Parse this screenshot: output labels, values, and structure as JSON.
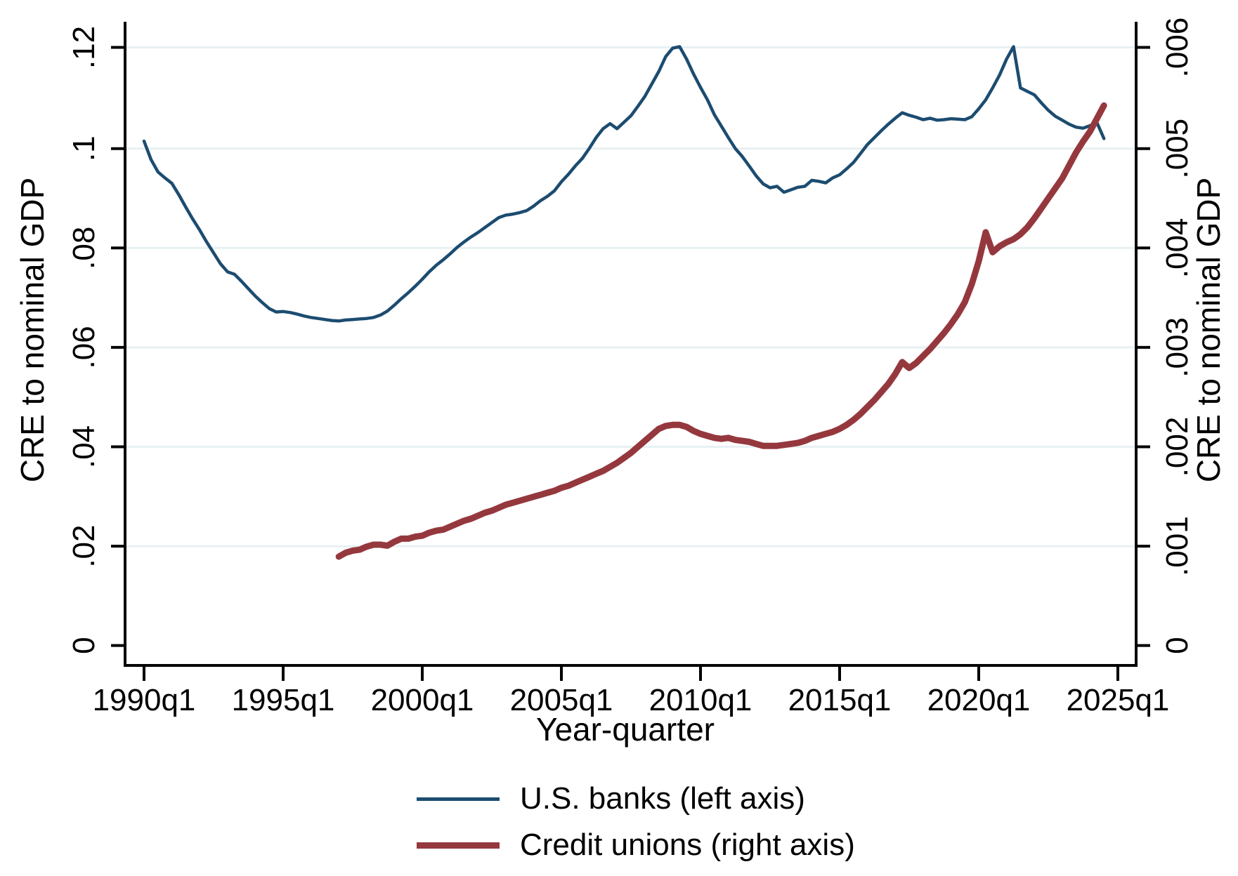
{
  "axes": {
    "left": {
      "title": "CRE to nominal GDP",
      "ticks": [
        ".12",
        ".1",
        ".08",
        ".06",
        ".04",
        ".02",
        "0"
      ]
    },
    "right": {
      "title": "CRE to nominal GDP",
      "ticks": [
        ".006",
        ".005",
        ".004",
        ".003",
        ".002",
        ".001",
        "0"
      ]
    },
    "x": {
      "title": "Year-quarter",
      "ticks": [
        "1990q1",
        "1995q1",
        "2000q1",
        "2005q1",
        "2010q1",
        "2015q1",
        "2020q1",
        "2025q1"
      ]
    }
  },
  "legend": {
    "items": [
      {
        "label": "U.S. banks (left axis)",
        "color": "#1c4c70"
      },
      {
        "label": "Credit unions (right axis)",
        "color": "#95383e"
      }
    ]
  },
  "colors": {
    "us_banks": "#1c4c70",
    "credit_unions": "#95383e",
    "gridline": "#e8f0f2",
    "axis": "#000000",
    "background": "#ffffff"
  },
  "chart_data": {
    "type": "line",
    "xlabel": "Year-quarter",
    "left_ylabel": "CRE to nominal GDP",
    "right_ylabel": "CRE to nominal GDP",
    "xlim": [
      1989.75,
      2025.5
    ],
    "left_ylim": [
      0,
      0.126
    ],
    "right_ylim": [
      0,
      0.0063
    ],
    "left_yticks": [
      0,
      0.02,
      0.04,
      0.06,
      0.08,
      0.1,
      0.12
    ],
    "right_yticks": [
      0,
      0.001,
      0.002,
      0.003,
      0.004,
      0.005,
      0.006
    ],
    "grid": true,
    "legend_position": "bottom",
    "series": [
      {
        "name": "U.S. banks (left axis)",
        "axis": "left",
        "color": "#1c4c70",
        "x_start": 1990.0,
        "x_step": 0.25,
        "values": [
          0.1015,
          0.0978,
          0.0953,
          0.0941,
          0.093,
          0.0907,
          0.0882,
          0.0858,
          0.0836,
          0.0812,
          0.079,
          0.0768,
          0.0752,
          0.0747,
          0.0733,
          0.0718,
          0.0703,
          0.069,
          0.0678,
          0.0671,
          0.0672,
          0.067,
          0.0667,
          0.0663,
          0.066,
          0.0658,
          0.0656,
          0.0654,
          0.0653,
          0.0655,
          0.0656,
          0.0657,
          0.0658,
          0.066,
          0.0665,
          0.0673,
          0.0685,
          0.0698,
          0.071,
          0.0723,
          0.0737,
          0.0752,
          0.0765,
          0.0776,
          0.0788,
          0.0801,
          0.0812,
          0.0822,
          0.0831,
          0.0841,
          0.0851,
          0.0861,
          0.0866,
          0.0868,
          0.0871,
          0.0875,
          0.0884,
          0.0895,
          0.0904,
          0.0915,
          0.0933,
          0.0948,
          0.0965,
          0.098,
          0.1,
          0.1022,
          0.104,
          0.105,
          0.104,
          0.1053,
          0.1066,
          0.1085,
          0.1105,
          0.113,
          0.1155,
          0.1185,
          0.1202,
          0.1205,
          0.118,
          0.115,
          0.1123,
          0.1098,
          0.1068,
          0.1045,
          0.1022,
          0.1,
          0.0984,
          0.0965,
          0.0945,
          0.0929,
          0.0921,
          0.0924,
          0.0912,
          0.0917,
          0.0922,
          0.0924,
          0.0936,
          0.0934,
          0.0931,
          0.0941,
          0.0947,
          0.0959,
          0.0972,
          0.099,
          0.1008,
          0.1022,
          0.1036,
          0.1049,
          0.1061,
          0.1072,
          0.1067,
          0.1063,
          0.1058,
          0.1061,
          0.1057,
          0.1058,
          0.106,
          0.1059,
          0.1058,
          0.1064,
          0.108,
          0.1098,
          0.1122,
          0.1148,
          0.118,
          0.1205,
          0.1122,
          0.1115,
          0.1108,
          0.1092,
          0.1077,
          0.1065,
          0.1057,
          0.1049,
          0.1043,
          0.1041,
          0.1046,
          0.1052,
          0.102
        ]
      },
      {
        "name": "Credit unions (right axis)",
        "axis": "right",
        "color": "#95383e",
        "x_start": 1997.0,
        "x_step": 0.25,
        "values": [
          0.00089,
          0.00093,
          0.00095,
          0.00096,
          0.00099,
          0.00101,
          0.00101,
          0.001,
          0.00104,
          0.00107,
          0.00107,
          0.00109,
          0.0011,
          0.00113,
          0.00115,
          0.00116,
          0.00119,
          0.00122,
          0.00125,
          0.00127,
          0.0013,
          0.00133,
          0.00135,
          0.00138,
          0.00141,
          0.00143,
          0.00145,
          0.00147,
          0.00149,
          0.00151,
          0.00153,
          0.00155,
          0.00158,
          0.0016,
          0.00163,
          0.00166,
          0.00169,
          0.00172,
          0.00175,
          0.00179,
          0.00183,
          0.00188,
          0.00193,
          0.00199,
          0.00205,
          0.00211,
          0.00217,
          0.0022,
          0.00221,
          0.00221,
          0.00219,
          0.00215,
          0.00212,
          0.0021,
          0.00208,
          0.00207,
          0.00208,
          0.00206,
          0.00205,
          0.00204,
          0.00202,
          0.002,
          0.002,
          0.002,
          0.00201,
          0.00202,
          0.00203,
          0.00205,
          0.00208,
          0.0021,
          0.00212,
          0.00214,
          0.00217,
          0.00221,
          0.00226,
          0.00232,
          0.00239,
          0.00246,
          0.00254,
          0.00262,
          0.00272,
          0.00284,
          0.00278,
          0.00283,
          0.0029,
          0.00297,
          0.00305,
          0.00313,
          0.00322,
          0.00332,
          0.00344,
          0.00362,
          0.00385,
          0.00414,
          0.00394,
          0.004,
          0.00404,
          0.00407,
          0.00412,
          0.00419,
          0.00428,
          0.00438,
          0.00448,
          0.00458,
          0.00468,
          0.00481,
          0.00494,
          0.00505,
          0.00515,
          0.00528,
          0.00541
        ]
      }
    ]
  }
}
